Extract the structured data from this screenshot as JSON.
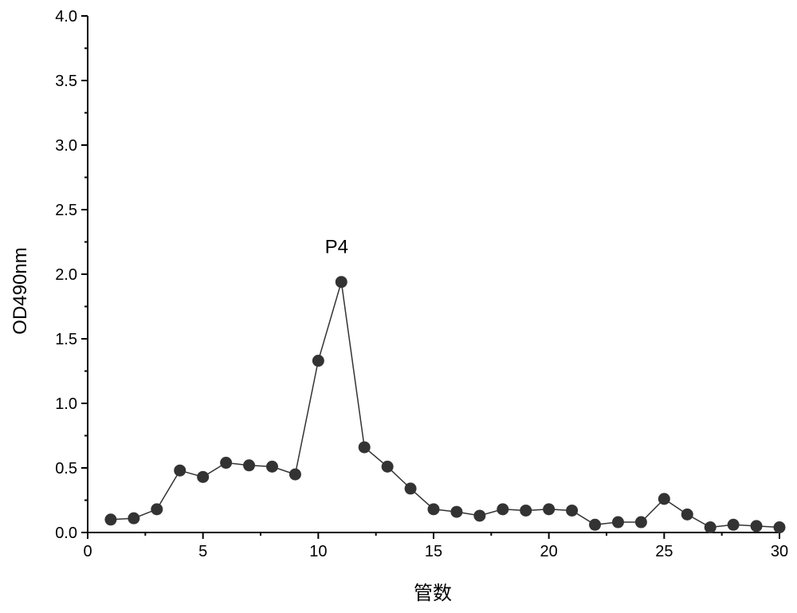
{
  "chart_data": {
    "type": "line",
    "title": "",
    "xlabel": "管数",
    "ylabel": "OD490nm",
    "xlim": [
      0,
      30
    ],
    "ylim": [
      0,
      4.0
    ],
    "x_ticks": [
      "0",
      "5",
      "10",
      "15",
      "20",
      "25",
      "30"
    ],
    "y_ticks": [
      "0.0",
      "0.5",
      "1.0",
      "1.5",
      "2.0",
      "2.5",
      "3.0",
      "3.5",
      "4.0"
    ],
    "grid": false,
    "marker": "circle",
    "series": [
      {
        "x": [
          1,
          2,
          3,
          4,
          5,
          6,
          7,
          8,
          9,
          10,
          11,
          12,
          13,
          14,
          15,
          16,
          17,
          18,
          19,
          20,
          21,
          22,
          23,
          24,
          25,
          26,
          27,
          28,
          29,
          30
        ],
        "y": [
          0.1,
          0.11,
          0.18,
          0.48,
          0.43,
          0.54,
          0.52,
          0.51,
          0.45,
          1.33,
          1.94,
          0.66,
          0.51,
          0.34,
          0.18,
          0.16,
          0.13,
          0.18,
          0.17,
          0.18,
          0.17,
          0.06,
          0.08,
          0.08,
          0.26,
          0.14,
          0.04,
          0.06,
          0.05,
          0.04
        ],
        "color": "#333333"
      }
    ],
    "annotations": [
      {
        "text": "P4",
        "x": 11,
        "y": 1.94
      }
    ]
  }
}
